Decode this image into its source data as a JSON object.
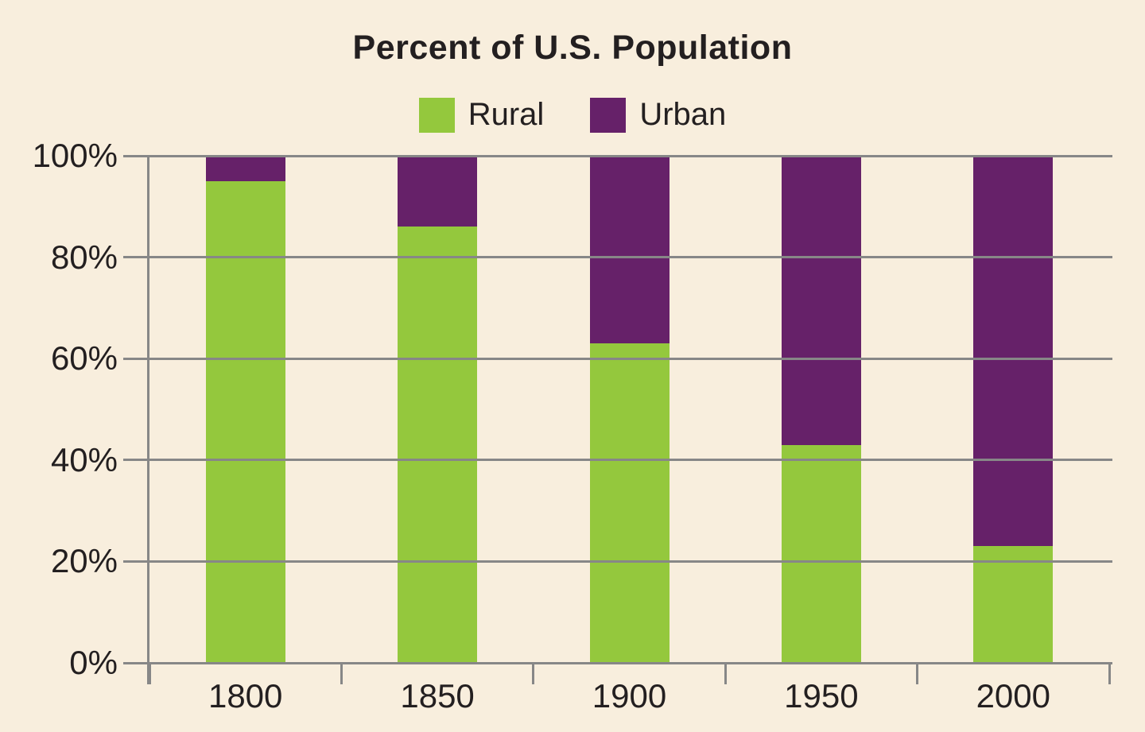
{
  "title": "Percent of U.S. Population",
  "colors": {
    "background": "#f8eedd",
    "axis": "#878787",
    "text": "#231f20",
    "rural": "#94c83d",
    "urban": "#662169"
  },
  "legend": {
    "items": [
      {
        "label": "Rural",
        "color": "#94c83d"
      },
      {
        "label": "Urban",
        "color": "#662169"
      }
    ]
  },
  "chart_data": {
    "type": "bar",
    "stacked": true,
    "title": "Percent of U.S. Population",
    "categories": [
      "1800",
      "1850",
      "1900",
      "1950",
      "2000"
    ],
    "series": [
      {
        "name": "Rural",
        "color": "#94c83d",
        "values": [
          95,
          86,
          63,
          43,
          23
        ]
      },
      {
        "name": "Urban",
        "color": "#662169",
        "values": [
          5,
          14,
          37,
          57,
          77
        ]
      }
    ],
    "xlabel": "",
    "ylabel": "",
    "ylim": [
      0,
      100
    ],
    "ytick_step": 20,
    "ytick_labels": [
      "0%",
      "20%",
      "40%",
      "60%",
      "80%",
      "100%"
    ],
    "grid": true,
    "legend_position": "top-center"
  }
}
